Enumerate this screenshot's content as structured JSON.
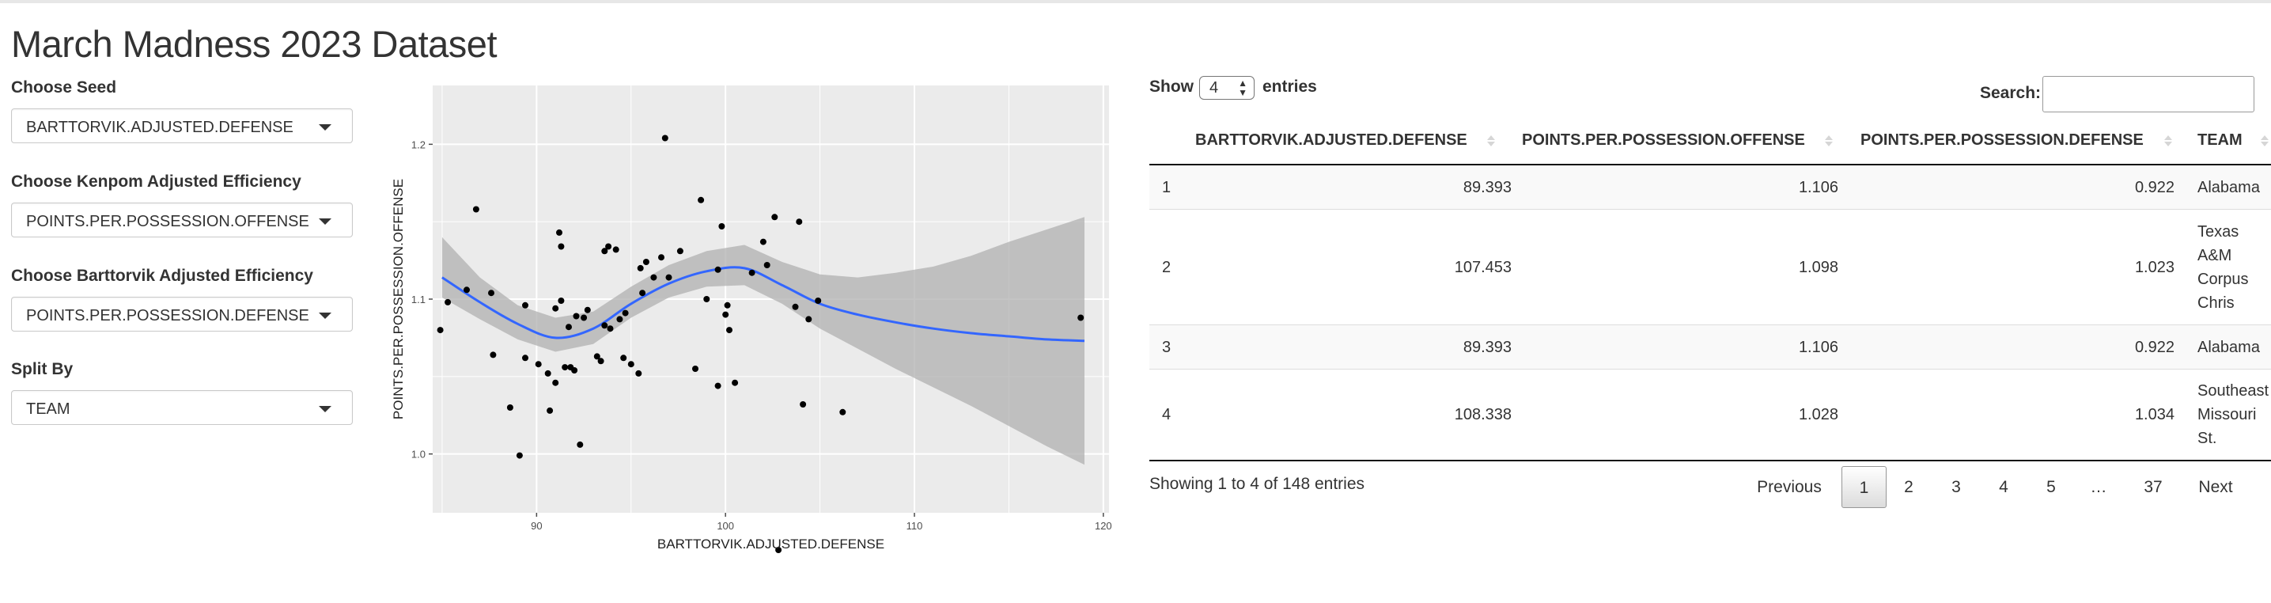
{
  "title": "March Madness 2023 Dataset",
  "controls": [
    {
      "label": "Choose Seed",
      "value": "BARTTORVIK.ADJUSTED.DEFENSE"
    },
    {
      "label": "Choose Kenpom Adjusted Efficiency",
      "value": "POINTS.PER.POSSESSION.OFFENSE"
    },
    {
      "label": "Choose Barttorvik Adjusted Efficiency",
      "value": "POINTS.PER.POSSESSION.DEFENSE"
    },
    {
      "label": "Split By",
      "value": "TEAM"
    }
  ],
  "chart_data": {
    "type": "scatter",
    "xlabel": "BARTTORVIK.ADJUSTED.DEFENSE",
    "ylabel": "POINTS.PER.POSSESSION.OFFENSE",
    "xlim": [
      84.5,
      120.3
    ],
    "ylim": [
      0.962,
      1.238
    ],
    "x_ticks": [
      90,
      100,
      110,
      120
    ],
    "y_ticks": [
      1.0,
      1.1,
      1.2
    ],
    "x_tick_labels": [
      "90",
      "100",
      "110",
      "120"
    ],
    "y_tick_labels": [
      "1.0",
      "1.1",
      "1.2"
    ],
    "grid": true,
    "points": [
      [
        84.9,
        1.08
      ],
      [
        85.3,
        1.098
      ],
      [
        86.3,
        1.106
      ],
      [
        86.8,
        1.158
      ],
      [
        87.6,
        1.104
      ],
      [
        87.7,
        1.064
      ],
      [
        88.6,
        1.03
      ],
      [
        89.1,
        0.999
      ],
      [
        89.4,
        1.096
      ],
      [
        89.4,
        1.062
      ],
      [
        90.1,
        1.058
      ],
      [
        90.6,
        1.052
      ],
      [
        90.7,
        1.028
      ],
      [
        91.0,
        1.046
      ],
      [
        91.0,
        1.094
      ],
      [
        91.2,
        1.143
      ],
      [
        91.3,
        1.134
      ],
      [
        91.3,
        1.099
      ],
      [
        91.5,
        1.056
      ],
      [
        91.7,
        1.082
      ],
      [
        91.8,
        1.056
      ],
      [
        92.0,
        1.054
      ],
      [
        92.1,
        1.089
      ],
      [
        92.3,
        1.006
      ],
      [
        92.5,
        1.088
      ],
      [
        92.7,
        1.093
      ],
      [
        93.2,
        1.063
      ],
      [
        93.4,
        1.06
      ],
      [
        93.6,
        1.131
      ],
      [
        93.6,
        1.083
      ],
      [
        93.8,
        1.134
      ],
      [
        93.9,
        1.081
      ],
      [
        94.2,
        1.132
      ],
      [
        94.4,
        1.087
      ],
      [
        94.6,
        1.062
      ],
      [
        94.7,
        1.091
      ],
      [
        95.0,
        1.058
      ],
      [
        95.4,
        1.052
      ],
      [
        95.5,
        1.12
      ],
      [
        95.6,
        1.104
      ],
      [
        95.8,
        1.124
      ],
      [
        96.2,
        1.114
      ],
      [
        96.6,
        1.127
      ],
      [
        96.8,
        1.204
      ],
      [
        97.0,
        1.114
      ],
      [
        97.6,
        1.131
      ],
      [
        98.4,
        1.055
      ],
      [
        98.7,
        1.164
      ],
      [
        99.0,
        1.1
      ],
      [
        99.6,
        1.044
      ],
      [
        99.6,
        1.119
      ],
      [
        99.8,
        1.147
      ],
      [
        100.0,
        1.09
      ],
      [
        100.1,
        1.096
      ],
      [
        100.2,
        1.08
      ],
      [
        100.5,
        1.046
      ],
      [
        101.4,
        1.117
      ],
      [
        102.0,
        1.137
      ],
      [
        102.2,
        1.122
      ],
      [
        102.6,
        1.153
      ],
      [
        102.8,
        0.938
      ],
      [
        103.7,
        1.095
      ],
      [
        103.9,
        1.15
      ],
      [
        104.1,
        1.032
      ],
      [
        104.4,
        1.087
      ],
      [
        104.9,
        1.099
      ],
      [
        106.2,
        1.027
      ],
      [
        118.8,
        1.088
      ]
    ],
    "smooth": {
      "x": [
        85,
        87,
        89,
        91,
        93,
        95,
        97,
        99,
        101,
        103,
        105,
        107,
        109,
        111,
        113,
        115,
        117,
        119
      ],
      "y": [
        1.114,
        1.098,
        1.084,
        1.075,
        1.081,
        1.097,
        1.11,
        1.118,
        1.12,
        1.109,
        1.097,
        1.09,
        1.085,
        1.081,
        1.078,
        1.076,
        1.074,
        1.073
      ],
      "lower": [
        1.101,
        1.087,
        1.074,
        1.066,
        1.071,
        1.088,
        1.101,
        1.108,
        1.109,
        1.097,
        1.081,
        1.068,
        1.055,
        1.043,
        1.031,
        1.018,
        1.005,
        0.993
      ],
      "upper": [
        1.14,
        1.114,
        1.096,
        1.088,
        1.092,
        1.108,
        1.122,
        1.131,
        1.135,
        1.124,
        1.116,
        1.114,
        1.117,
        1.121,
        1.128,
        1.137,
        1.145,
        1.153
      ]
    },
    "colors": {
      "panel": "#ebebeb",
      "grid": "#ffffff",
      "point": "#000000",
      "line": "#3366ff",
      "band": "#b0b0b0"
    }
  },
  "table": {
    "show_label": "Show",
    "entries_label": "entries",
    "length_value": "4",
    "search_label": "Search:",
    "search_value": "",
    "columns": [
      "BARTTORVIK.ADJUSTED.DEFENSE",
      "POINTS.PER.POSSESSION.OFFENSE",
      "POINTS.PER.POSSESSION.DEFENSE",
      "TEAM"
    ],
    "rows": [
      {
        "idx": "1",
        "c1": "89.393",
        "c2": "1.106",
        "c3": "0.922",
        "team": [
          "Alabama"
        ]
      },
      {
        "idx": "2",
        "c1": "107.453",
        "c2": "1.098",
        "c3": "1.023",
        "team": [
          "Texas",
          "A&M",
          "Corpus",
          "Chris"
        ]
      },
      {
        "idx": "3",
        "c1": "89.393",
        "c2": "1.106",
        "c3": "0.922",
        "team": [
          "Alabama"
        ]
      },
      {
        "idx": "4",
        "c1": "108.338",
        "c2": "1.028",
        "c3": "1.034",
        "team": [
          "Southeast",
          "Missouri",
          "St."
        ]
      }
    ],
    "info": "Showing 1 to 4 of 148 entries",
    "pagination": {
      "previous": "Previous",
      "pages": [
        "1",
        "2",
        "3",
        "4",
        "5",
        "…",
        "37"
      ],
      "next": "Next",
      "current": "1"
    }
  }
}
